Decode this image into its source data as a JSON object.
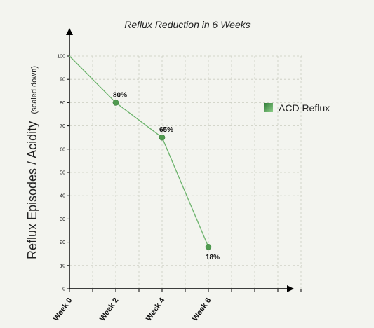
{
  "chart_data": {
    "type": "line",
    "title": "Reflux Reduction in 6 Weeks",
    "ylabel": "Reflux Episodes / Acidity",
    "ylabel_note": "(scaled down)",
    "xlabel": "",
    "categories": [
      "Week 0",
      "Week 2",
      "Week 4",
      "Week 6"
    ],
    "series": [
      {
        "name": "ACD Reflux",
        "values": [
          100,
          80,
          65,
          18
        ],
        "data_labels": [
          "",
          "80%",
          "65%",
          "18%"
        ],
        "color": "#5aa65a"
      }
    ],
    "ylim": [
      0,
      100
    ],
    "yticks": [
      0,
      10,
      20,
      30,
      40,
      50,
      60,
      70,
      80,
      90,
      100
    ],
    "grid": true,
    "legend_position": "right",
    "colors": {
      "background": "#f3f4ef",
      "line": "#6cb36c",
      "marker": "#4f9a4f"
    }
  }
}
